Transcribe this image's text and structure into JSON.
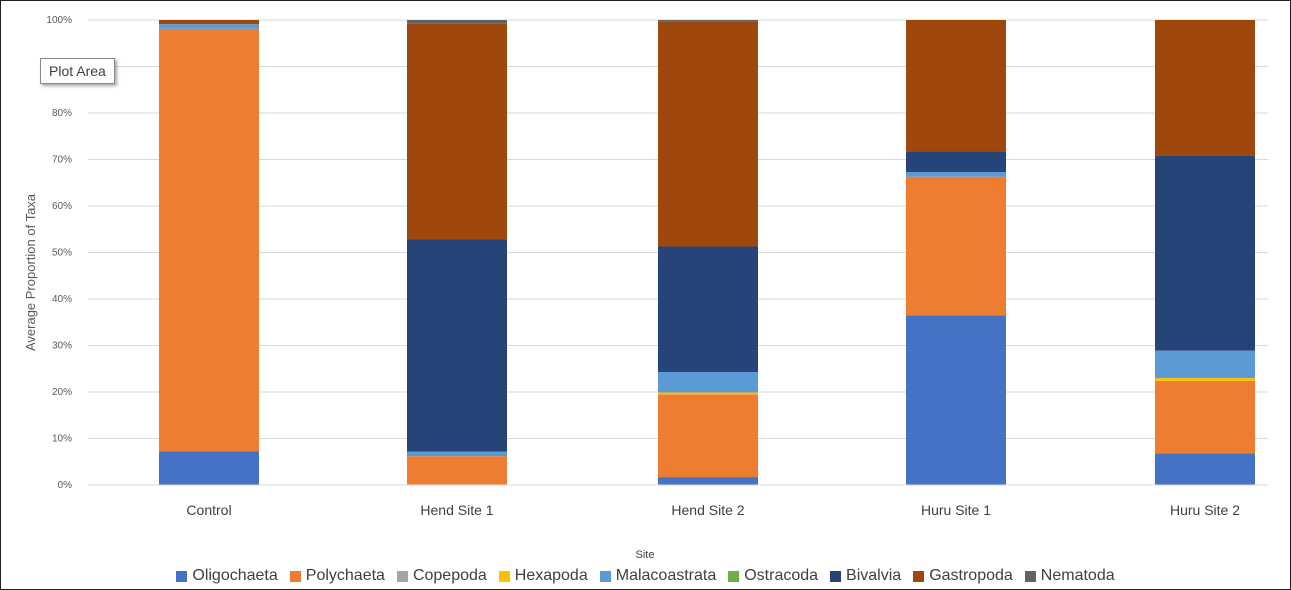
{
  "tooltip": {
    "label": "Plot Area"
  },
  "chart_data": {
    "type": "bar",
    "stacked": true,
    "normalized": true,
    "categories": [
      "Control",
      "Hend Site 1",
      "Hend Site 2",
      "Huru Site 1",
      "Huru Site 2"
    ],
    "xlabel": "Site",
    "ylabel": "Average Proportion of Taxa",
    "ylim": [
      0,
      100
    ],
    "yticks": [
      "0%",
      "10%",
      "20%",
      "30%",
      "40%",
      "50%",
      "60%",
      "70%",
      "80%",
      "100%"
    ],
    "ytick_values": [
      0,
      10,
      20,
      30,
      40,
      50,
      60,
      70,
      80,
      100
    ],
    "legend_position": "bottom",
    "grid": true,
    "series": [
      {
        "name": "Oligochaeta",
        "color": "#4472C4",
        "values": [
          7.2,
          0.0,
          1.7,
          36.5,
          6.8
        ]
      },
      {
        "name": "Polychaeta",
        "color": "#ED7D31",
        "values": [
          90.9,
          6.2,
          17.8,
          29.8,
          15.6
        ]
      },
      {
        "name": "Copepoda",
        "color": "#A5A5A5",
        "values": [
          0.0,
          0.0,
          0.0,
          0.0,
          0.0
        ]
      },
      {
        "name": "Hexapoda",
        "color": "#FFC000",
        "values": [
          0.0,
          0.0,
          0.4,
          0.0,
          0.6
        ]
      },
      {
        "name": "Malacoastrata",
        "color": "#5B9BD5",
        "values": [
          1.0,
          1.0,
          4.4,
          1.0,
          5.9
        ]
      },
      {
        "name": "Ostracoda",
        "color": "#70AD47",
        "values": [
          0.0,
          0.0,
          0.0,
          0.0,
          0.0
        ]
      },
      {
        "name": "Bivalvia",
        "color": "#264478",
        "values": [
          0.0,
          45.6,
          27.0,
          4.5,
          42.0
        ]
      },
      {
        "name": "Gastropoda",
        "color": "#9E480E",
        "values": [
          0.9,
          46.4,
          48.4,
          28.2,
          29.1
        ]
      },
      {
        "name": "Nematoda",
        "color": "#636363",
        "values": [
          0.0,
          0.8,
          0.3,
          0.0,
          0.0
        ]
      }
    ]
  }
}
